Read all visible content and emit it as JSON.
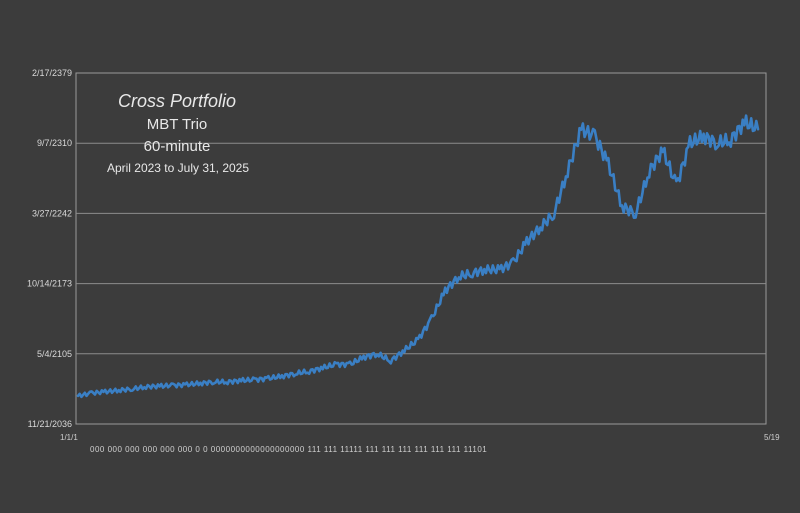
{
  "chart_data": {
    "type": "line",
    "annotations": [
      "Cross Portfolio",
      "MBT Trio",
      "60-minute",
      "April 2023 to July 31, 2025"
    ],
    "y_tick_labels": [
      "11/21/2036",
      "5/4/2105",
      "10/14/2173",
      "3/27/2242",
      "9/7/2310",
      "2/17/2379"
    ],
    "ylim": [
      0,
      5
    ],
    "grid": true,
    "x_first_tick": "1/1/1",
    "x_last_tick": "5/19",
    "x_second_row": "000 000 000 000 000 000 0 0 0000000000000000000 111 111 11111 111 111 111 111 111 111 11101",
    "series": [
      {
        "color": "#3a7fc4",
        "x": [
          0,
          2,
          4,
          6,
          8,
          10,
          12,
          14,
          16,
          18,
          20,
          22,
          24,
          26,
          28,
          30,
          32,
          34,
          36,
          38,
          40,
          42,
          44,
          46,
          48,
          50,
          52,
          54,
          56,
          58,
          60,
          62,
          64,
          66,
          68,
          70,
          72,
          74,
          76,
          78,
          80,
          82,
          84,
          86,
          88,
          90,
          92,
          94,
          96,
          98,
          100
        ],
        "y": [
          0.4,
          0.44,
          0.46,
          0.48,
          0.5,
          0.53,
          0.54,
          0.55,
          0.56,
          0.58,
          0.6,
          0.6,
          0.62,
          0.63,
          0.65,
          0.68,
          0.72,
          0.75,
          0.8,
          0.85,
          0.85,
          0.95,
          1.0,
          0.9,
          1.05,
          1.2,
          1.5,
          1.9,
          2.1,
          2.15,
          2.2,
          2.2,
          2.3,
          2.6,
          2.8,
          3.0,
          3.6,
          4.2,
          4.1,
          3.7,
          3.1,
          3.0,
          3.6,
          3.9,
          3.4,
          4.0,
          4.1,
          4.0,
          4.05,
          4.3,
          4.2
        ]
      }
    ]
  }
}
